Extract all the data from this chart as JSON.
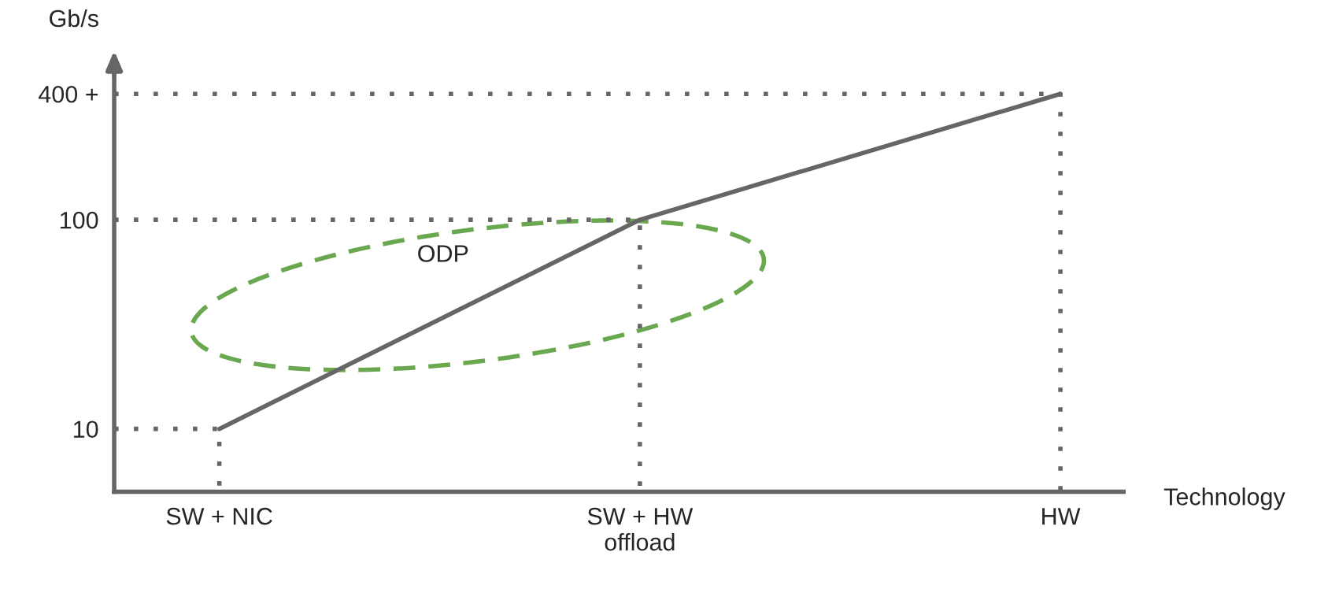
{
  "chart_data": {
    "type": "line",
    "xlabel": "Technology",
    "ylabel": "Gb/s",
    "categories": [
      "SW + NIC",
      "SW + HW\noffload",
      "HW"
    ],
    "series": [
      {
        "color": "#666666",
        "values": [
          10,
          100,
          400
        ]
      }
    ],
    "ylim": [
      5,
      500
    ],
    "log": "y",
    "yticks": [
      10,
      100,
      {
        "value": 400,
        "label": "400 +"
      }
    ],
    "ref_lines": [
      {
        "axis": "y",
        "value": 10,
        "line_style": "dotted",
        "color": "#666666"
      },
      {
        "axis": "y",
        "value": 100,
        "line_style": "dotted",
        "color": "#666666"
      },
      {
        "axis": "y",
        "value": 400,
        "line_style": "dotted",
        "color": "#666666"
      }
    ],
    "annotations": [
      "ODP"
    ],
    "grid": false,
    "legend": false
  }
}
